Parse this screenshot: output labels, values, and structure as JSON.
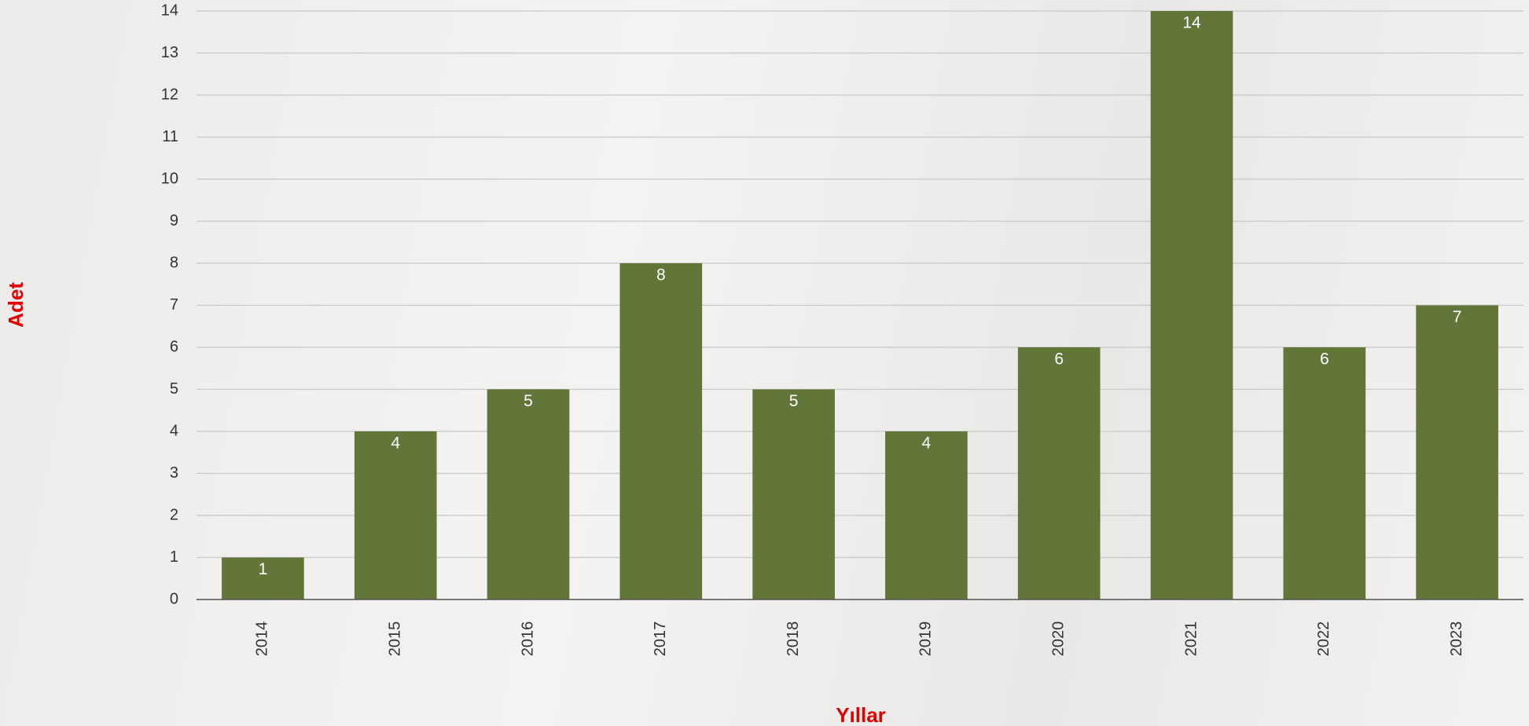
{
  "chart_data": {
    "type": "bar",
    "categories": [
      "2014",
      "2015",
      "2016",
      "2017",
      "2018",
      "2019",
      "2020",
      "2021",
      "2022",
      "2023"
    ],
    "values": [
      1,
      4,
      5,
      8,
      5,
      4,
      6,
      14,
      6,
      7
    ],
    "color": "#63763a",
    "x_label": "Yıllar",
    "y_label": "Adet",
    "ylim": [
      0,
      14
    ],
    "yticks": [
      0,
      1,
      2,
      3,
      4,
      5,
      6,
      7,
      8,
      9,
      10,
      11,
      12,
      13,
      14
    ],
    "grid": true
  }
}
